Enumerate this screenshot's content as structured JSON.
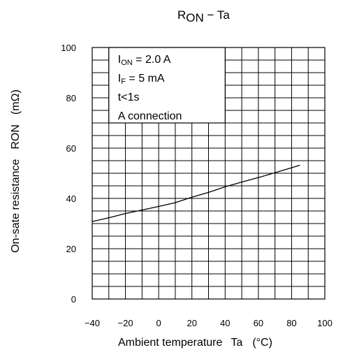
{
  "chart_data": {
    "type": "line",
    "title": {
      "main": "R",
      "sub": "ON",
      "rest": " − Ta"
    },
    "xlabel": {
      "text": "Ambient temperature",
      "symbol": "Ta",
      "unit": "(°C)"
    },
    "ylabel": {
      "text": "On-sate resistance",
      "symbol": "RON",
      "unit": "(mΩ)"
    },
    "xlim": [
      -40,
      100
    ],
    "ylim": [
      0,
      100
    ],
    "x_ticks": [
      -40,
      -20,
      0,
      20,
      40,
      60,
      80,
      100
    ],
    "y_ticks": [
      0,
      20,
      40,
      60,
      80,
      100
    ],
    "x_tick_labels": [
      "−40",
      "−20",
      "0",
      "20",
      "40",
      "60",
      "80",
      "100"
    ],
    "y_tick_labels": [
      "0",
      "20",
      "40",
      "60",
      "80",
      "100"
    ],
    "x_minor_step": 10,
    "y_minor_step": 5,
    "grid": true,
    "legend": "top-left",
    "annotation": {
      "lines": [
        {
          "main": "I",
          "sub": "ON",
          "rest": " = 2.0 A"
        },
        {
          "main": "I",
          "sub": "F",
          "rest": " = 5 mA"
        },
        {
          "main": "t<1s",
          "sub": "",
          "rest": ""
        },
        {
          "main": "A connection",
          "sub": "",
          "rest": ""
        }
      ]
    },
    "series": [
      {
        "color": "#000000",
        "x": [
          -40,
          -30,
          -20,
          -10,
          0,
          10,
          20,
          30,
          40,
          50,
          60,
          70,
          80,
          85
        ],
        "y": [
          30.8,
          32.3,
          34.0,
          35.4,
          36.8,
          38.3,
          40.5,
          42.4,
          44.6,
          46.5,
          48.3,
          50.2,
          52.2,
          53.2
        ]
      }
    ]
  }
}
